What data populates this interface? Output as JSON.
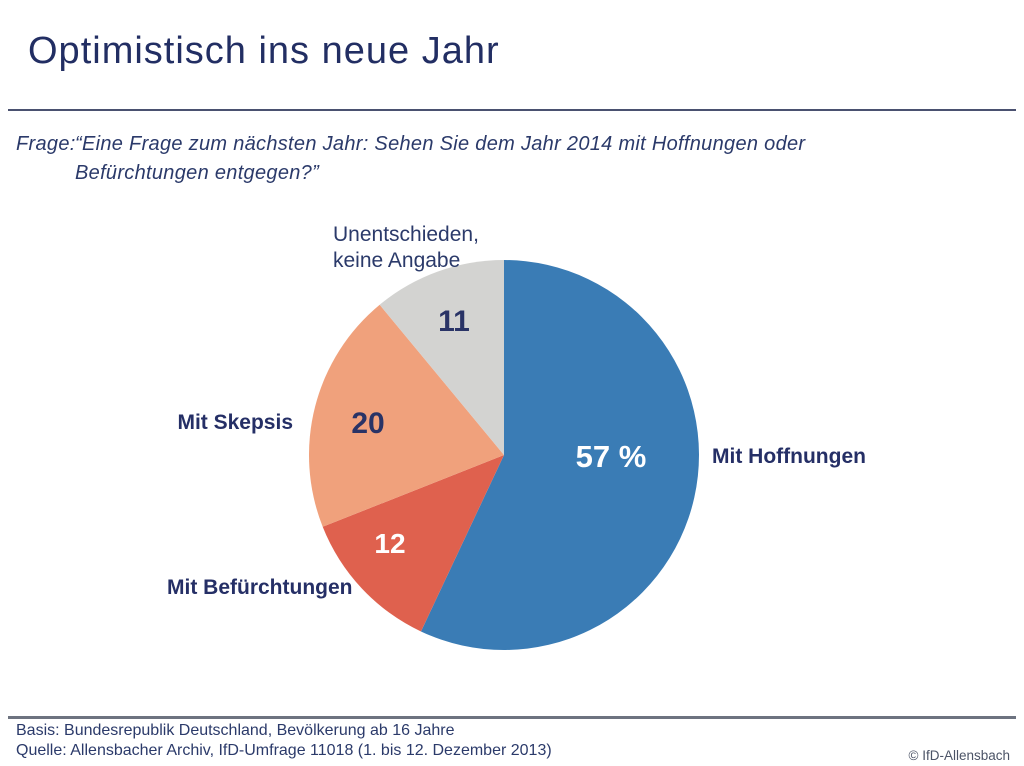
{
  "header": {
    "title": "Optimistisch ins neue Jahr"
  },
  "question": {
    "label": "Frage:",
    "lines": [
      "“Eine Frage zum nächsten Jahr: Sehen Sie dem Jahr 2014 mit Hoffnungen oder",
      "Befürchtungen entgegen?”"
    ]
  },
  "chart_data": {
    "type": "pie",
    "unit": "percent",
    "start_angle_deg": 0,
    "direction": "clockwise",
    "slices": [
      {
        "label": "Mit Hoffnungen",
        "value": 57,
        "display": "57 %",
        "color": "#3a7cb5",
        "value_color": "#ffffff"
      },
      {
        "label": "Mit Befürchtungen",
        "value": 12,
        "display": "12",
        "color": "#df614e",
        "value_color": "#ffffff"
      },
      {
        "label": "Mit Skepsis",
        "value": 20,
        "display": "20",
        "color": "#f0a17c",
        "value_color": "#293366"
      },
      {
        "label": "Unentschieden, keine Angabe",
        "value": 11,
        "display": "11",
        "color": "#d3d3d1",
        "value_color": "#293366"
      }
    ]
  },
  "footer": {
    "basis": "Basis: Bundesrepublik Deutschland, Bevölkerung ab 16 Jahre",
    "quelle": "Quelle: Allensbacher Archiv, IfD-Umfrage 11018 (1. bis 12. Dezember 2013)",
    "copyright": "© IfD-Allensbach"
  },
  "colors": {
    "accent_navy": "#232f66",
    "text_navy": "#2b3a6a"
  }
}
